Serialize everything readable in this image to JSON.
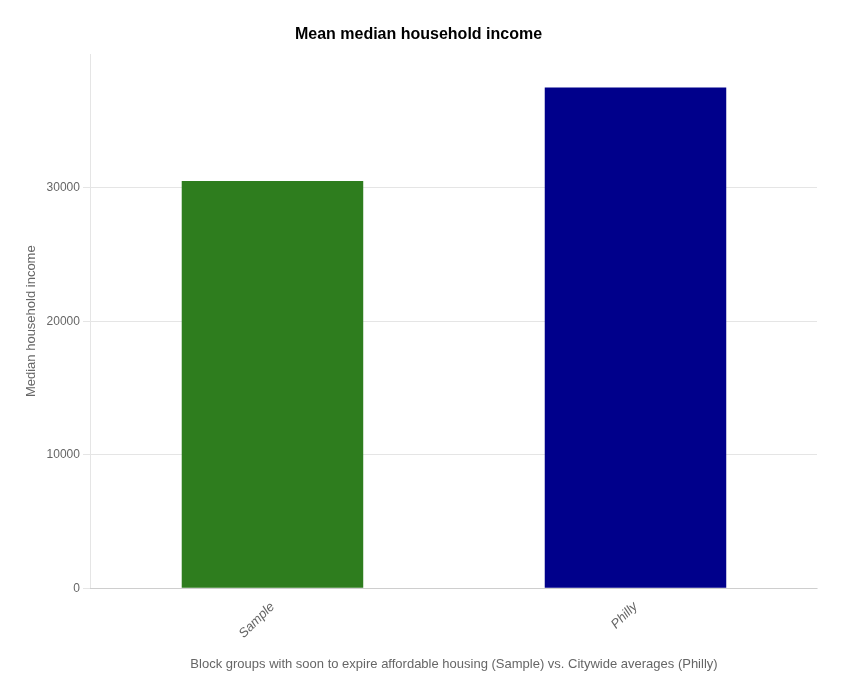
{
  "chart_data": {
    "type": "bar",
    "title": "Mean median household income",
    "categories": [
      "Sample",
      "Philly"
    ],
    "values": [
      30500,
      37500
    ],
    "colors": [
      "#2e7d1e",
      "#00008b"
    ],
    "ylabel": "Median household income",
    "xlabel": "Block groups with soon to expire affordable housing (Sample) vs. Citywide averages (Philly)",
    "ylim": [
      0,
      40000
    ],
    "yticks": [
      0,
      10000,
      20000,
      30000
    ],
    "grid": true
  }
}
